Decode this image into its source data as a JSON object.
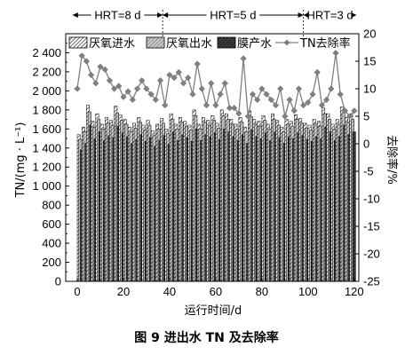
{
  "caption": "图 9   进出水 TN 及去除率",
  "chart_data": {
    "type": "bar",
    "xlabel": "运行时间/d",
    "ylabel_left": "TN/(mg · L⁻¹)",
    "ylabel_right": "去除率/%",
    "xlim": [
      -5,
      122
    ],
    "ylim_left": [
      0,
      2600
    ],
    "ylim_right": [
      -25,
      20
    ],
    "xticks": [
      "0",
      "20",
      "40",
      "60",
      "80",
      "100",
      "120"
    ],
    "yticks_left": [
      "0",
      "200",
      "400",
      "600",
      "800",
      "1 000",
      "1 200",
      "1 400",
      "1 600",
      "1 800",
      "2 000",
      "2 200",
      "2 400"
    ],
    "yticks_right": [
      "-25",
      "-20",
      "-15",
      "-10",
      "-5",
      "0",
      "5",
      "10",
      "15",
      "20"
    ],
    "hrt_periods": [
      {
        "label": "HRT=8 d",
        "start": -2,
        "end": 37
      },
      {
        "label": "HRT=5 d",
        "start": 37,
        "end": 98
      },
      {
        "label": "HRT=3 d",
        "start": 98,
        "end": 121
      }
    ],
    "legend": [
      "厌氧进水",
      "厌氧出水",
      "膜产水",
      "TN去除率"
    ],
    "x": [
      1,
      3,
      5,
      7,
      9,
      11,
      13,
      15,
      17,
      19,
      21,
      23,
      25,
      27,
      29,
      31,
      33,
      35,
      37,
      39,
      41,
      43,
      45,
      47,
      49,
      51,
      53,
      55,
      57,
      59,
      61,
      63,
      65,
      67,
      69,
      71,
      73,
      75,
      77,
      79,
      81,
      83,
      85,
      87,
      89,
      91,
      93,
      95,
      97,
      99,
      101,
      103,
      105,
      107,
      109,
      111,
      113,
      115,
      117,
      119
    ],
    "series": [
      {
        "name": "厌氧进水",
        "values": [
          1540,
          1620,
          1850,
          1680,
          1760,
          1650,
          1720,
          1690,
          1840,
          1750,
          1700,
          1620,
          1660,
          1720,
          1640,
          1690,
          1580,
          1650,
          1710,
          1600,
          1760,
          1650,
          1720,
          1680,
          1640,
          1800,
          1650,
          1720,
          1690,
          1740,
          1660,
          1800,
          1760,
          1700,
          1650,
          1720,
          1620,
          1790,
          1700,
          1680,
          1740,
          1650,
          1760,
          1690,
          1620,
          1700,
          1680,
          1750,
          1710,
          1660,
          1640,
          1700,
          1680,
          1820,
          1760,
          1650,
          1700,
          1830,
          1720,
          1760
        ]
      },
      {
        "name": "厌氧出水",
        "values": [
          1490,
          1570,
          1780,
          1620,
          1700,
          1600,
          1660,
          1640,
          1770,
          1690,
          1650,
          1570,
          1610,
          1670,
          1590,
          1640,
          1530,
          1600,
          1660,
          1550,
          1700,
          1600,
          1670,
          1630,
          1590,
          1740,
          1600,
          1670,
          1640,
          1690,
          1610,
          1740,
          1700,
          1650,
          1600,
          1670,
          1570,
          1730,
          1650,
          1630,
          1690,
          1600,
          1700,
          1640,
          1570,
          1650,
          1630,
          1700,
          1660,
          1610,
          1590,
          1650,
          1630,
          1760,
          1700,
          1600,
          1650,
          1770,
          1670,
          1700
        ]
      },
      {
        "name": "膜产水",
        "values": [
          1380,
          1450,
          1640,
          1500,
          1570,
          1480,
          1530,
          1510,
          1630,
          1560,
          1520,
          1450,
          1490,
          1540,
          1470,
          1510,
          1420,
          1480,
          1530,
          1440,
          1570,
          1480,
          1540,
          1510,
          1470,
          1600,
          1480,
          1540,
          1520,
          1560,
          1490,
          1600,
          1570,
          1520,
          1480,
          1540,
          1450,
          1590,
          1520,
          1500,
          1560,
          1480,
          1570,
          1510,
          1450,
          1520,
          1500,
          1560,
          1530,
          1490,
          1470,
          1520,
          1500,
          1620,
          1570,
          1480,
          1520,
          1640,
          1540,
          1570
        ]
      },
      {
        "name": "TN去除率",
        "x": [
          0,
          2,
          4,
          6,
          8,
          10,
          12,
          14,
          16,
          18,
          20,
          22,
          24,
          26,
          28,
          30,
          32,
          34,
          36,
          38,
          40,
          42,
          44,
          46,
          48,
          50,
          52,
          54,
          56,
          58,
          60,
          62,
          64,
          66,
          68,
          70,
          72,
          74,
          76,
          78,
          80,
          82,
          84,
          86,
          88,
          90,
          92,
          94,
          96,
          98,
          100,
          102,
          104,
          106,
          108,
          110,
          112,
          114,
          116,
          118,
          120
        ],
        "values": [
          10,
          16,
          15,
          12.5,
          11,
          14,
          13.5,
          11.5,
          10,
          10.5,
          8.5,
          9.5,
          8,
          10,
          11.5,
          10,
          9,
          8,
          11.5,
          7,
          12.5,
          12,
          13,
          11,
          12,
          9,
          14.5,
          10,
          7,
          11,
          7,
          9,
          11,
          6.5,
          6.5,
          5.5,
          15.5,
          5,
          9,
          8,
          10,
          9,
          8,
          7,
          10,
          5,
          8,
          6,
          10,
          7,
          7.5,
          9,
          13,
          7,
          8,
          10,
          16.5,
          9,
          6,
          5,
          6
        ]
      }
    ]
  }
}
